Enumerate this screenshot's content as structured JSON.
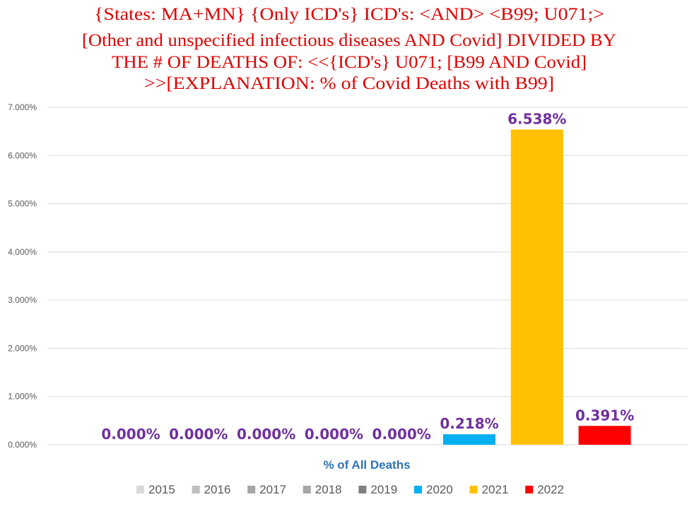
{
  "chart_data": {
    "type": "bar",
    "title_lines": [
      "{States: MA+MN}   {Only ICD's}  ICD's:  <AND>  <B99; U071;>",
      "[Other and unspecified infectious diseases AND Covid] DIVIDED BY",
      "THE # OF DEATHS OF: <<{ICD's}  U071;  [B99 AND Covid]",
      ">>[EXPLANATION:  % of Covid Deaths with B99]"
    ],
    "xlabel": "% of All Deaths",
    "ylabel": "",
    "ylim": [
      0,
      7
    ],
    "yticks": [
      "0.000%",
      "1.000%",
      "2.000%",
      "3.000%",
      "4.000%",
      "5.000%",
      "6.000%",
      "7.000%"
    ],
    "grid": true,
    "legend_position": "bottom",
    "series": [
      {
        "name": "2015",
        "value": 0.0,
        "label": "0.000%",
        "color": "#d9d9d9"
      },
      {
        "name": "2016",
        "value": 0.0,
        "label": "0.000%",
        "color": "#bfbfbf"
      },
      {
        "name": "2017",
        "value": 0.0,
        "label": "0.000%",
        "color": "#a6a6a6"
      },
      {
        "name": "2018",
        "value": 0.0,
        "label": "0.000%",
        "color": "#a6a6a6"
      },
      {
        "name": "2019",
        "value": 0.0,
        "label": "0.000%",
        "color": "#7f7f7f"
      },
      {
        "name": "2020",
        "value": 0.218,
        "label": "0.218%",
        "color": "#00b0f0"
      },
      {
        "name": "2021",
        "value": 6.538,
        "label": "6.538%",
        "color": "#ffc000"
      },
      {
        "name": "2022",
        "value": 0.391,
        "label": "0.391%",
        "color": "#ff0000"
      }
    ]
  }
}
